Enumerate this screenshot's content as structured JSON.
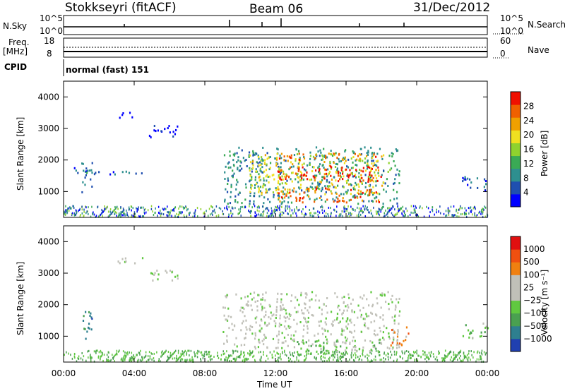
{
  "header": {
    "station": "Stokkseyri (fitACF)",
    "beam": "Beam 06",
    "date": "31/Dec/2012"
  },
  "top_panels": {
    "nsky_label": "N.Sky",
    "nsky_ticks": [
      "10^5",
      "10^0"
    ],
    "nsearch_label": "N.Search",
    "nsearch_ticks": [
      "10^5",
      "10^0"
    ],
    "freq_label": "Freq.",
    "freq_unit": "[MHz]",
    "freq_ticks": [
      "18",
      "8"
    ],
    "nave_label": "Nave",
    "nave_ticks": [
      "60",
      "0"
    ],
    "cpid_label": "CPID",
    "cpid_value": "normal (fast) 151"
  },
  "chart_data": [
    {
      "type": "heatmap",
      "name": "Power",
      "ylabel": "Slant Range [km]",
      "ylim": [
        180,
        4500
      ],
      "yticks": [
        "4000",
        "3000",
        "2000",
        "1000"
      ],
      "xlim": [
        "00:00",
        "24:00"
      ],
      "colorbar": {
        "label": "Power [dB]",
        "ticks": [
          "28",
          "24",
          "20",
          "16",
          "12",
          "8",
          "4"
        ],
        "colors": [
          "#0000ff",
          "#1f4fb0",
          "#2e8f8f",
          "#3aaa55",
          "#8fd22e",
          "#f0e020",
          "#f0a000",
          "#f06000",
          "#f01000"
        ]
      },
      "features": [
        {
          "t0": 0.5,
          "t1": 2.0,
          "r0": 1450,
          "r1": 1750,
          "level": 1
        },
        {
          "t0": 1.0,
          "t1": 1.6,
          "r0": 900,
          "r1": 1950,
          "level": 2
        },
        {
          "t0": 2.5,
          "t1": 4.5,
          "r0": 1500,
          "r1": 1650,
          "level": 1
        },
        {
          "t0": 3.0,
          "t1": 4.0,
          "r0": 3300,
          "r1": 3500,
          "level": 0
        },
        {
          "t0": 4.8,
          "t1": 6.5,
          "r0": 2700,
          "r1": 3100,
          "level": 0
        },
        {
          "t0": 9.0,
          "t1": 19.0,
          "r0": 600,
          "r1": 2400,
          "level": 2
        },
        {
          "t0": 10.5,
          "t1": 18.5,
          "r0": 900,
          "r1": 2200,
          "level": 5
        },
        {
          "t0": 12.0,
          "t1": 18.0,
          "r0": 1300,
          "r1": 1800,
          "level": 8
        },
        {
          "t0": 12.0,
          "t1": 18.0,
          "r0": 2000,
          "r1": 2200,
          "level": 7
        },
        {
          "t0": 12.0,
          "t1": 18.0,
          "r0": 650,
          "r1": 1100,
          "level": 7
        },
        {
          "t0": 22.5,
          "t1": 24.0,
          "r0": 1000,
          "r1": 1500,
          "level": 1
        }
      ]
    },
    {
      "type": "heatmap",
      "name": "Velocity",
      "ylabel": "Slant Range [km]",
      "xlabel": "Time UT",
      "ylim": [
        180,
        4500
      ],
      "yticks": [
        "4000",
        "3000",
        "2000",
        "1000"
      ],
      "xticks": [
        "00:00",
        "04:00",
        "08:00",
        "12:00",
        "16:00",
        "20:00",
        "00:00"
      ],
      "colorbar": {
        "label": "Velocity [m s⁻¹]",
        "ticks": [
          "1000",
          "500",
          "100",
          "25",
          "−25",
          "−100",
          "−500",
          "−1000"
        ],
        "colors": [
          "#2040b0",
          "#2e7f8f",
          "#4aa050",
          "#60c840",
          "#c0c0b8",
          "#c0c0b8",
          "#f08010",
          "#f05010",
          "#e01010"
        ]
      },
      "features": [
        {
          "t0": 3.0,
          "t1": 4.5,
          "r0": 3300,
          "r1": 3500,
          "level": 4
        },
        {
          "t0": 4.8,
          "t1": 6.5,
          "r0": 2700,
          "r1": 3100,
          "level": 4
        },
        {
          "t0": 1.0,
          "t1": 1.6,
          "r0": 900,
          "r1": 1950,
          "level": 1
        },
        {
          "t0": 9.0,
          "t1": 19.0,
          "r0": 600,
          "r1": 2400,
          "level": 4
        },
        {
          "t0": 13.0,
          "t1": 18.0,
          "r0": 500,
          "r1": 900,
          "level": 3
        },
        {
          "t0": 18.5,
          "t1": 19.5,
          "r0": 700,
          "r1": 1300,
          "level": 6
        },
        {
          "t0": 22.5,
          "t1": 24.0,
          "r0": 900,
          "r1": 1400,
          "level": 3
        }
      ]
    }
  ]
}
